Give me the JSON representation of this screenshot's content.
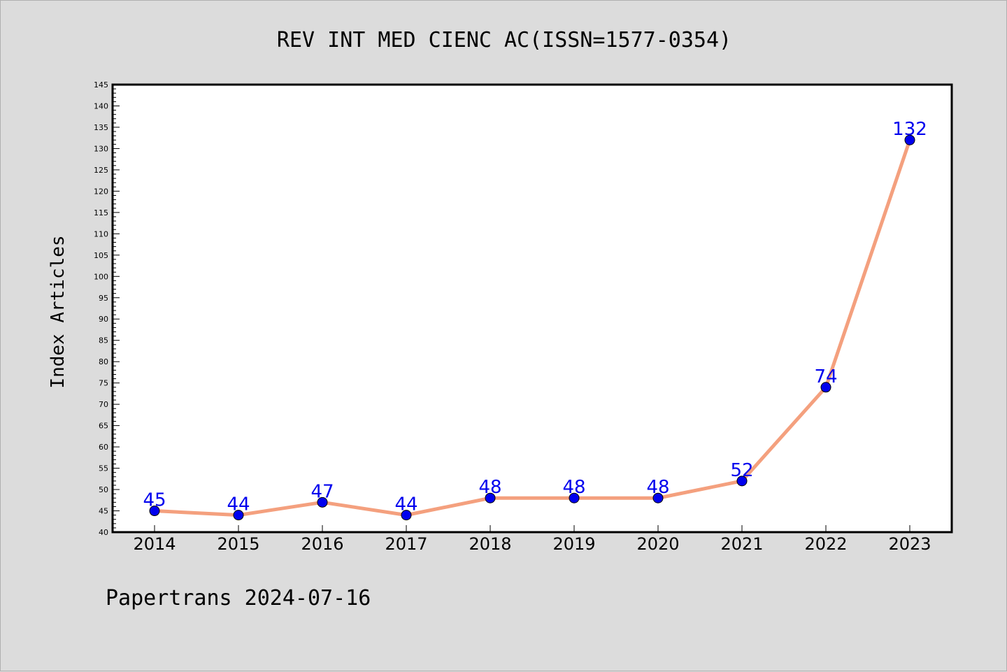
{
  "chart_data": {
    "type": "line",
    "title": "REV INT MED CIENC AC(ISSN=1577-0354)",
    "ylabel": "Index Articles",
    "xlabel": "",
    "categories": [
      "2014",
      "2015",
      "2016",
      "2017",
      "2018",
      "2019",
      "2020",
      "2021",
      "2022",
      "2023"
    ],
    "series": [
      {
        "values": [
          45,
          44,
          47,
          44,
          48,
          48,
          48,
          52,
          74,
          132
        ]
      }
    ],
    "data_labels": [
      "45",
      "44",
      "47",
      "44",
      "48",
      "48",
      "48",
      "52",
      "74",
      "132"
    ],
    "ylim": [
      40,
      145
    ],
    "yticks": [
      "40",
      "45",
      "50",
      "55",
      "60",
      "65",
      "70",
      "75",
      "80",
      "85",
      "90",
      "95",
      "100",
      "105",
      "110",
      "115",
      "120",
      "125",
      "130",
      "135",
      "140",
      "145"
    ],
    "grid": false,
    "legend": "none",
    "colors": {
      "line": "#f4a07e",
      "marker": "#0000ee",
      "label": "#0000ee"
    }
  },
  "footer": "Papertrans 2024-07-16"
}
